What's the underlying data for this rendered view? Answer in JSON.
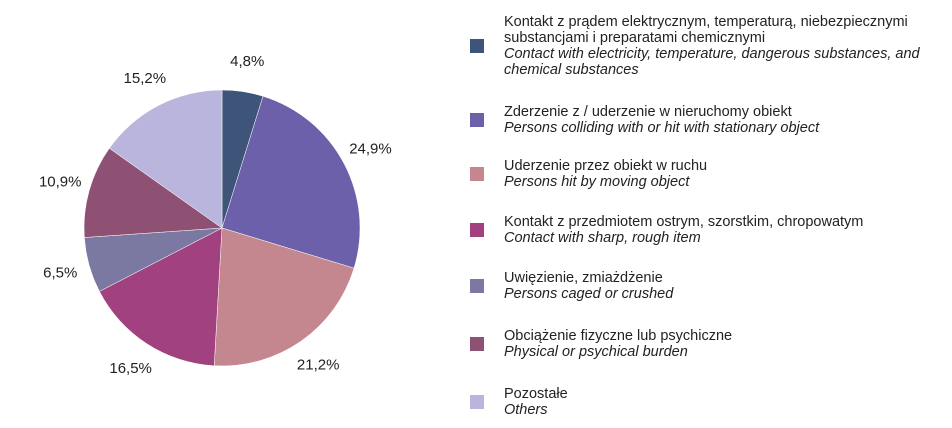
{
  "chart_data": {
    "type": "pie",
    "categories": [
      "Kontakt z prądem elektrycznym, temperaturą, niebezpiecznymi substancjami i preparatami chemicznymi",
      "Zderzenie z / uderzenie w nieruchomy obiekt",
      "Uderzenie przez obiekt w ruchu",
      "Kontakt z przedmiotem ostrym, szorstkim, chropowatym",
      "Uwięzienie, zmiażdżenie",
      "Obciążenie fizyczne lub psychiczne",
      "Pozostałe"
    ],
    "categories_en": [
      "Contact with electricity, temperature, dangerous substances, and chemical substances",
      "Persons colliding with or hit with stationary object",
      "Persons hit by moving object",
      "Contact with sharp, rough item",
      "Persons caged or crushed",
      "Physical or psychical burden",
      "Others"
    ],
    "values": [
      4.8,
      24.9,
      21.2,
      16.5,
      6.5,
      10.9,
      15.2
    ],
    "value_labels": [
      "4,8%",
      "24,9%",
      "21,2%",
      "16,5%",
      "6,5%",
      "10,9%",
      "15,2%"
    ],
    "colors": [
      "#3f5479",
      "#6b60a9",
      "#c4878f",
      "#a1417f",
      "#7b79a1",
      "#8f5173",
      "#bab5dd"
    ],
    "legend": "right"
  }
}
